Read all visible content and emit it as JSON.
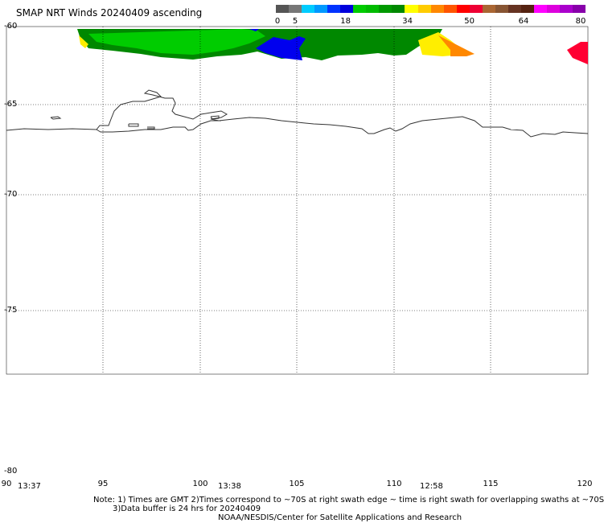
{
  "title": "SMAP NRT Winds 20240409 ascending",
  "colorbar": {
    "labels": [
      "0",
      "5",
      "18",
      "34",
      "50",
      "64",
      "80"
    ],
    "colors": [
      "#555555",
      "#777777",
      "#00ccff",
      "#0099ff",
      "#0033ff",
      "#0000dd",
      "#00cc00",
      "#00bb00",
      "#009900",
      "#008800",
      "#ffff00",
      "#ffcc00",
      "#ff8800",
      "#ff5500",
      "#ff0000",
      "#ee0033",
      "#aa6633",
      "#885533",
      "#663322",
      "#552211",
      "#ff00ff",
      "#dd00dd",
      "#aa00cc",
      "#8800aa"
    ]
  },
  "latitude_labels": [
    "-60",
    "-65",
    "-70",
    "-75",
    "-80"
  ],
  "longitude_labels": [
    "90",
    "95",
    "100",
    "105",
    "110",
    "115",
    "120"
  ],
  "swath_times": [
    "13:37",
    "13:38",
    "12:58"
  ],
  "notes": [
    "Note: 1) Times are GMT 2)Times correspond to ~70S at right swath edge ~ time is right swath for overlapping swaths at ~70S",
    "3)Data buffer is 24 hrs for 20240409",
    "NOAA/NESDIS/Center for Satellite Applications and Research"
  ],
  "wind_colors": {
    "dark_green": "#008800",
    "green": "#00cc00",
    "blue": "#0000ee",
    "yellow": "#ffee00",
    "orange": "#ff8800",
    "red": "#ff0033"
  }
}
